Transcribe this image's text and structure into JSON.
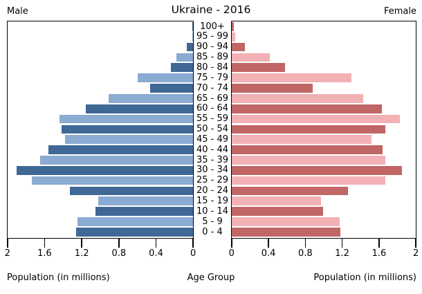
{
  "header": {
    "title": "Ukraine - 2016",
    "left_label": "Male",
    "right_label": "Female"
  },
  "footer": {
    "left_axis_label": "Population (in millions)",
    "center_label": "Age Group",
    "right_axis_label": "Population (in millions)"
  },
  "colors": {
    "male_dark": "#3f6896",
    "male_light": "#8aabd2",
    "female_dark": "#c16565",
    "female_light": "#f2b1b5",
    "axis": "#000000"
  },
  "chart_data": {
    "type": "bar",
    "subtype": "population-pyramid",
    "title": "Ukraine - 2016",
    "unit": "millions",
    "grid": false,
    "legend": "none",
    "categories_top_to_bottom": [
      "100+",
      "95 - 99",
      "90 - 94",
      "85 - 89",
      "80 - 84",
      "75 - 79",
      "70 - 74",
      "65 - 69",
      "60 - 64",
      "55 - 59",
      "50 - 54",
      "45 - 49",
      "40 - 44",
      "35 - 39",
      "30 - 34",
      "25 - 29",
      "20 - 24",
      "15 - 19",
      "10 - 14",
      "5 - 9",
      "0 - 4"
    ],
    "series": [
      {
        "name": "Male",
        "values_top_to_bottom": [
          0.005,
          0.01,
          0.07,
          0.18,
          0.24,
          0.6,
          0.46,
          0.91,
          1.16,
          1.44,
          1.42,
          1.38,
          1.56,
          1.65,
          1.9,
          1.74,
          1.33,
          1.02,
          1.05,
          1.25,
          1.26
        ]
      },
      {
        "name": "Female",
        "values_top_to_bottom": [
          0.02,
          0.04,
          0.14,
          0.41,
          0.58,
          1.3,
          0.88,
          1.43,
          1.63,
          1.83,
          1.67,
          1.52,
          1.64,
          1.67,
          1.85,
          1.67,
          1.26,
          0.97,
          0.99,
          1.17,
          1.18
        ]
      }
    ],
    "x_axis": {
      "max": 2,
      "male_tick_labels": [
        "2",
        "1.6",
        "1.2",
        "0.8",
        "0.4",
        "0"
      ],
      "female_tick_labels": [
        "0",
        "0.4",
        "0.8",
        "1.2",
        "1.6",
        "2"
      ]
    }
  }
}
